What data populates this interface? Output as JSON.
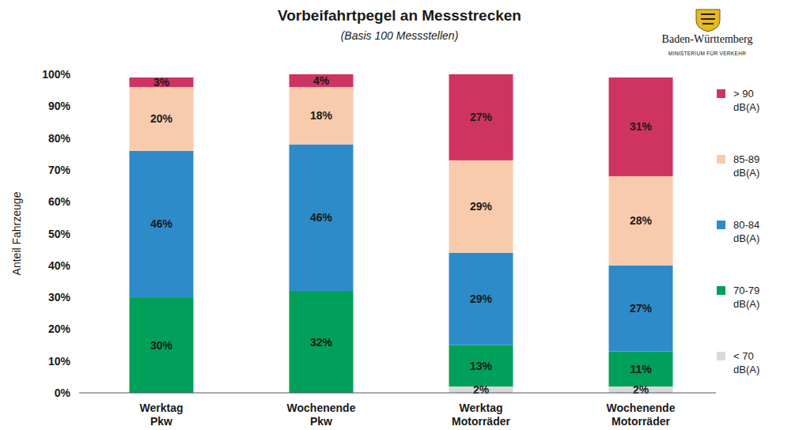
{
  "chart_data": {
    "type": "bar",
    "stacked": true,
    "data_labels": true,
    "legend": "right",
    "grid": false,
    "title": "Vorbeifahrtpegel an Messstrecken",
    "subtitle": "(Basis 100 Messstellen)",
    "y_label": "Anteil Fahrzeuge",
    "annotations": [
      "Baden-Württemberg",
      "MINISTERIUM FÜR VERKEHR"
    ],
    "categories": [
      "Werktag Pkw",
      "Wochenende Pkw",
      "Werktag Motorräder",
      "Wochenende Motorräder"
    ],
    "ylim": [
      0,
      100
    ],
    "yticks": [
      {
        "value": 0,
        "label": "0%"
      },
      {
        "value": 10,
        "label": "10%"
      },
      {
        "value": 20,
        "label": "20%"
      },
      {
        "value": 30,
        "label": "30%"
      },
      {
        "value": 40,
        "label": "40%"
      },
      {
        "value": 50,
        "label": "50%"
      },
      {
        "value": 60,
        "label": "60%"
      },
      {
        "value": 70,
        "label": "70%"
      },
      {
        "value": 80,
        "label": "80%"
      },
      {
        "value": 90,
        "label": "90%"
      },
      {
        "value": 100,
        "label": "100%"
      }
    ],
    "series": [
      {
        "name": "< 70 dB(A)",
        "color": "#d9d9d9",
        "values": [
          null,
          null,
          2,
          2
        ],
        "value_labels": [
          null,
          null,
          "2%",
          "2%"
        ]
      },
      {
        "name": "70-79 dB(A)",
        "color": "#00a05a",
        "values": [
          30,
          32,
          13,
          11
        ],
        "value_labels": [
          "30%",
          "32%",
          "13%",
          "11%"
        ]
      },
      {
        "name": "80-84 dB(A)",
        "color": "#2e8bc9",
        "values": [
          46,
          46,
          29,
          27
        ],
        "value_labels": [
          "46%",
          "46%",
          "29%",
          "27%"
        ]
      },
      {
        "name": "85-89 dB(A)",
        "color": "#f8cbad",
        "values": [
          20,
          18,
          29,
          28
        ],
        "value_labels": [
          "20%",
          "18%",
          "29%",
          "28%"
        ]
      },
      {
        "name": "> 90 dB(A)",
        "color": "#cf3461",
        "values": [
          3,
          4,
          27,
          31
        ],
        "value_labels": [
          "3%",
          "4%",
          "27%",
          "31%"
        ]
      }
    ]
  }
}
